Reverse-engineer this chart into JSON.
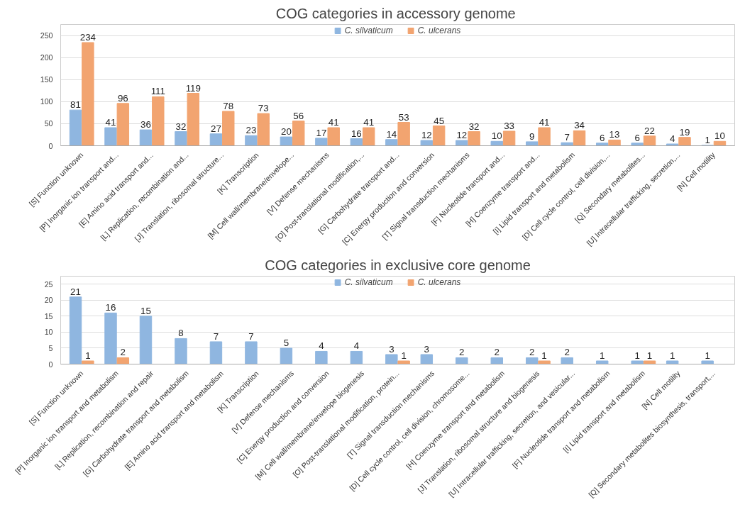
{
  "chart_data": [
    {
      "type": "bar",
      "title": "COG categories in accessory  genome",
      "categories": [
        "[S] Function unknown",
        "[P] Inorganic ion transport and...",
        "[E] Amino acid transport and...",
        "[L] Replication, recombination and...",
        "[J] Translation, ribosomal structure...",
        "[K] Transcription",
        "[M] Cell wall/membrane/envelope...",
        "[V] Defense mechanisms",
        "[O] Post-translational modification,...",
        "[G] Carbohydrate transport and...",
        "[C] Energy production and conversion",
        "[T] Signal transduction mechanisms",
        "[F] Nucleotide transport and...",
        "[H] Coenzyme transport and...",
        "[I] Lipid transport and metabolism",
        "[D] Cell cycle control, cell division,...",
        "[Q] Secondary metabolites...",
        "[U] Intracellular trafficking, secretion,...",
        "[N] Cell motility"
      ],
      "series": [
        {
          "name": "C. silvaticum",
          "color": "#8fb6e0",
          "values": [
            81,
            41,
            36,
            32,
            27,
            23,
            20,
            17,
            16,
            14,
            12,
            12,
            10,
            9,
            7,
            6,
            6,
            4,
            1
          ]
        },
        {
          "name": "C. ulcerans",
          "color": "#f2a470",
          "values": [
            234,
            96,
            111,
            119,
            78,
            73,
            56,
            41,
            41,
            53,
            45,
            32,
            33,
            41,
            34,
            13,
            22,
            19,
            10
          ]
        }
      ],
      "ylim": [
        0,
        275
      ],
      "yticks": [
        0,
        50,
        100,
        150,
        200,
        250
      ],
      "grid": "y",
      "legend": "top",
      "data_labels": true
    },
    {
      "type": "bar",
      "title": "COG categories in exclusive core genome",
      "categories": [
        "[S] Function unknown",
        "[P] Inorganic ion transport and metabolism",
        "[L] Replication, recombination and repair",
        "[G] Carbohydrate transport and metabolism",
        "[E] Amino acid transport and metabolism",
        "[K] Transcription",
        "[V] Defense mechanisms",
        "[C] Energy production and conversion",
        "[M] Cell wall/membrane/envelope biogenesis",
        "[O] Post-translational modification, protein...",
        "[T] Signal transduction mechanisms",
        "[D] Cell cycle control, cell division, chromosome...",
        "[H] Coenzyme transport and metabolism",
        "[J] Translation, ribosomal structure and biogenesis",
        "[U] Intracellular trafficking, secretion, and vesicular...",
        "[F] Nucleotide transport and metabolism",
        "[I] Lipid transport and metabolism",
        "[N] Cell motility",
        "[Q] Secondary metabolites biosynthesis, transport,..."
      ],
      "series": [
        {
          "name": "C. silvaticum",
          "color": "#8fb6e0",
          "values": [
            21,
            16,
            15,
            8,
            7,
            7,
            5,
            4,
            4,
            3,
            3,
            2,
            2,
            2,
            2,
            1,
            1,
            1,
            1
          ]
        },
        {
          "name": "C. ulcerans",
          "color": "#f2a470",
          "values": [
            1,
            2,
            null,
            null,
            null,
            null,
            null,
            null,
            null,
            1,
            null,
            null,
            null,
            1,
            null,
            null,
            1,
            null,
            null
          ]
        }
      ],
      "ylim": [
        0,
        27.5
      ],
      "yticks": [
        0,
        5,
        10,
        15,
        20,
        25
      ],
      "grid": "y",
      "legend": "top",
      "data_labels": true
    }
  ]
}
